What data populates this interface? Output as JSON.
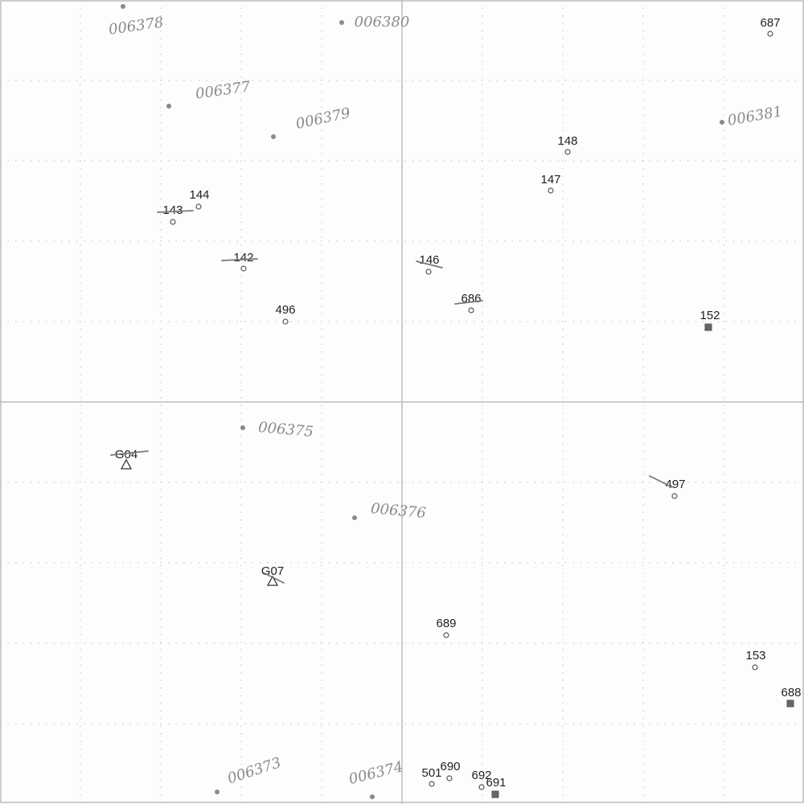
{
  "map": {
    "colors": {
      "background": "#fdfdfd",
      "frame": "#bdbdbd",
      "dotted_grid": "#c9c9c9",
      "point": "#555555",
      "label": "#222222",
      "handwriting": "#8a8a8a"
    },
    "points": [
      {
        "label": "687",
        "kind": "circle"
      },
      {
        "label": "148",
        "kind": "circle"
      },
      {
        "label": "147",
        "kind": "circle"
      },
      {
        "label": "144",
        "kind": "circle"
      },
      {
        "label": "143",
        "kind": "circle"
      },
      {
        "label": "142",
        "kind": "circle"
      },
      {
        "label": "146",
        "kind": "circle"
      },
      {
        "label": "686",
        "kind": "circle"
      },
      {
        "label": "496",
        "kind": "circle"
      },
      {
        "label": "152",
        "kind": "square"
      },
      {
        "label": "G04",
        "kind": "triangle"
      },
      {
        "label": "497",
        "kind": "circle"
      },
      {
        "label": "G07",
        "kind": "triangle"
      },
      {
        "label": "689",
        "kind": "circle"
      },
      {
        "label": "153",
        "kind": "circle"
      },
      {
        "label": "688",
        "kind": "square"
      },
      {
        "label": "501",
        "kind": "circle"
      },
      {
        "label": "690",
        "kind": "circle"
      },
      {
        "label": "692",
        "kind": "circle"
      },
      {
        "label": "691",
        "kind": "square"
      }
    ],
    "handwritten_notes": [
      "006378",
      "006380",
      "006377",
      "006379",
      "006381",
      "006375",
      "006376",
      "006373",
      "006374"
    ]
  }
}
